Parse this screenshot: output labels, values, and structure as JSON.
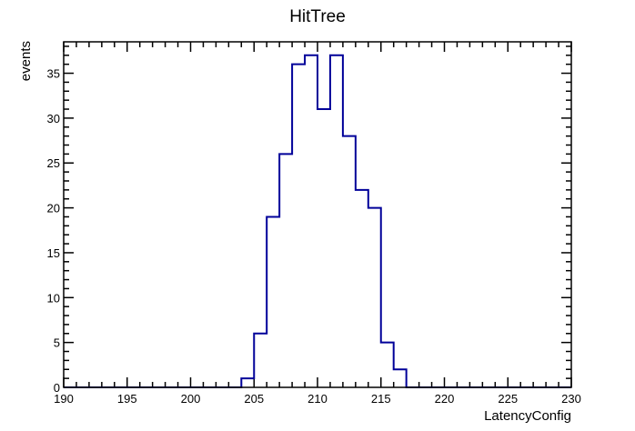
{
  "chart_data": {
    "type": "histogram",
    "title": "HitTree",
    "xlabel": "LatencyConfig",
    "ylabel": "events",
    "xlim": [
      190,
      230
    ],
    "ylim": [
      0,
      38.5
    ],
    "bin_width": 1,
    "x_ticks": [
      190,
      195,
      200,
      205,
      210,
      215,
      220,
      225,
      230
    ],
    "y_ticks": [
      0,
      5,
      10,
      15,
      20,
      25,
      30,
      35
    ],
    "bins": [
      {
        "x": 190,
        "value": 0
      },
      {
        "x": 191,
        "value": 0
      },
      {
        "x": 192,
        "value": 0
      },
      {
        "x": 193,
        "value": 0
      },
      {
        "x": 194,
        "value": 0
      },
      {
        "x": 195,
        "value": 0
      },
      {
        "x": 196,
        "value": 0
      },
      {
        "x": 197,
        "value": 0
      },
      {
        "x": 198,
        "value": 0
      },
      {
        "x": 199,
        "value": 0
      },
      {
        "x": 200,
        "value": 0
      },
      {
        "x": 201,
        "value": 0
      },
      {
        "x": 202,
        "value": 0
      },
      {
        "x": 203,
        "value": 0
      },
      {
        "x": 204,
        "value": 1
      },
      {
        "x": 205,
        "value": 6
      },
      {
        "x": 206,
        "value": 19
      },
      {
        "x": 207,
        "value": 26
      },
      {
        "x": 208,
        "value": 36
      },
      {
        "x": 209,
        "value": 37
      },
      {
        "x": 210,
        "value": 31
      },
      {
        "x": 211,
        "value": 37
      },
      {
        "x": 212,
        "value": 28
      },
      {
        "x": 213,
        "value": 22
      },
      {
        "x": 214,
        "value": 20
      },
      {
        "x": 215,
        "value": 5
      },
      {
        "x": 216,
        "value": 2
      },
      {
        "x": 217,
        "value": 0
      },
      {
        "x": 218,
        "value": 0
      },
      {
        "x": 219,
        "value": 0
      },
      {
        "x": 220,
        "value": 0
      },
      {
        "x": 221,
        "value": 0
      },
      {
        "x": 222,
        "value": 0
      },
      {
        "x": 223,
        "value": 0
      },
      {
        "x": 224,
        "value": 0
      },
      {
        "x": 225,
        "value": 0
      },
      {
        "x": 226,
        "value": 0
      },
      {
        "x": 227,
        "value": 0
      },
      {
        "x": 228,
        "value": 0
      },
      {
        "x": 229,
        "value": 0
      }
    ],
    "line_color": "#000099",
    "grid": false,
    "legend": "none"
  }
}
